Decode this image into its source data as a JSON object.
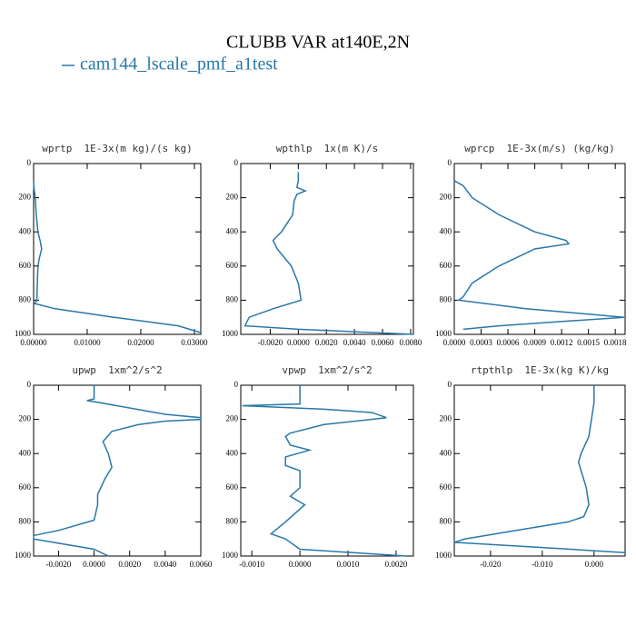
{
  "title": "CLUBB VAR at140E,2N",
  "chart_data": [
    {
      "type": "line",
      "title": "wprtp  1E-3x(m kg)/(s kg)",
      "y": [
        100,
        150,
        200,
        300,
        400,
        450,
        500,
        550,
        600,
        700,
        800,
        820,
        850,
        900,
        950,
        990
      ],
      "series": [
        {
          "name": "cam144_lscale_pmf_a1test",
          "color": "#2878a8",
          "values": [
            0,
            0.0001,
            0.0003,
            0.0005,
            0.0008,
            0.0012,
            0.0015,
            0.0011,
            0.0008,
            0.0007,
            0.0006,
            0.0002,
            0.004,
            0.015,
            0.027,
            0.0312
          ]
        }
      ],
      "xlim": [
        0,
        0.0312
      ],
      "xticks": [
        {
          "value": 0,
          "label": "0.00000"
        },
        {
          "value": 0.01,
          "label": "0.01000"
        },
        {
          "value": 0.02,
          "label": "0.02000"
        },
        {
          "value": 0.03,
          "label": "0.03000"
        }
      ],
      "ylim": [
        1000,
        0
      ],
      "yticks": [
        0,
        200,
        400,
        600,
        800,
        1000
      ]
    },
    {
      "type": "line",
      "title": "wpthlp  1x(m K)/s",
      "y": [
        50,
        100,
        140,
        160,
        180,
        220,
        300,
        400,
        450,
        500,
        600,
        700,
        800,
        850,
        900,
        950,
        970,
        1000
      ],
      "series": [
        {
          "name": "cam144_lscale_pmf_a1test",
          "color": "#2878a8",
          "values": [
            0,
            0,
            -0.0001,
            0.0005,
            -0.0001,
            -0.0003,
            -0.0004,
            -0.0012,
            -0.0018,
            -0.0015,
            -0.0005,
            0,
            0.0002,
            -0.0018,
            -0.0035,
            -0.0038,
            0,
            0.0082
          ]
        }
      ],
      "xlim": [
        -0.0041,
        0.0082
      ],
      "xticks": [
        {
          "value": -0.002,
          "label": "-0.0020"
        },
        {
          "value": 0,
          "label": "0.0000"
        },
        {
          "value": 0.002,
          "label": "0.0020"
        },
        {
          "value": 0.004,
          "label": "0.0040"
        },
        {
          "value": 0.006,
          "label": "0.0060"
        },
        {
          "value": 0.008,
          "label": "0.0080"
        }
      ],
      "ylim": [
        1000,
        0
      ],
      "yticks": [
        0,
        200,
        400,
        600,
        800,
        1000
      ]
    },
    {
      "type": "line",
      "title": "wprcp  1E-3x(m/s) (kg/kg)",
      "y": [
        100,
        130,
        200,
        300,
        400,
        450,
        470,
        500,
        600,
        700,
        780,
        800,
        850,
        900,
        950,
        970
      ],
      "series": [
        {
          "name": "cam144_lscale_pmf_a1test",
          "color": "#2878a8",
          "values": [
            0,
            0.0001,
            0.0002,
            0.0005,
            0.0009,
            0.00125,
            0.00128,
            0.0009,
            0.0005,
            0.0002,
            0.0001,
            5e-05,
            0.0008,
            0.0019,
            0.0005,
            0.0001
          ]
        }
      ],
      "xlim": [
        0,
        0.00191
      ],
      "xticks": [
        {
          "value": 0,
          "label": "0.0000"
        },
        {
          "value": 0.0003,
          "label": "0.0003"
        },
        {
          "value": 0.0006,
          "label": "0.0006"
        },
        {
          "value": 0.0009,
          "label": "0.0009"
        },
        {
          "value": 0.0012,
          "label": "0.0012"
        },
        {
          "value": 0.0015,
          "label": "0.0015"
        },
        {
          "value": 0.0018,
          "label": "0.0018"
        }
      ],
      "ylim": [
        1000,
        0
      ],
      "yticks": [
        0,
        200,
        400,
        600,
        800,
        1000
      ]
    },
    {
      "type": "line",
      "title": "upwp  1xm^2/s^2",
      "y": [
        0,
        80,
        90,
        100,
        170,
        190,
        200,
        210,
        230,
        270,
        330,
        400,
        480,
        550,
        640,
        700,
        790,
        850,
        880,
        900,
        960,
        1000
      ],
      "series": [
        {
          "name": "cam144_lscale_pmf_a1test",
          "color": "#2878a8",
          "values": [
            0,
            0,
            -0.0004,
            0.0002,
            0.004,
            0.006,
            0.006,
            0.004,
            0.0025,
            0.001,
            0.0005,
            0.0008,
            0.001,
            0.0006,
            0.0002,
            0.0002,
            0,
            -0.002,
            -0.0034,
            -0.0034,
            0,
            0.0008
          ]
        }
      ],
      "xlim": [
        -0.0034,
        0.006
      ],
      "xticks": [
        {
          "value": -0.002,
          "label": "-0.0020"
        },
        {
          "value": 0,
          "label": "0.0000"
        },
        {
          "value": 0.002,
          "label": "0.0020"
        },
        {
          "value": 0.004,
          "label": "0.0040"
        },
        {
          "value": 0.006,
          "label": "0.0060"
        }
      ],
      "ylim": [
        1000,
        0
      ],
      "yticks": [
        0,
        200,
        400,
        600,
        800,
        1000
      ]
    },
    {
      "type": "line",
      "title": "vpwp  1xm^2/s^2",
      "y": [
        0,
        110,
        120,
        140,
        160,
        190,
        230,
        280,
        300,
        350,
        380,
        420,
        470,
        500,
        600,
        650,
        700,
        800,
        870,
        900,
        960,
        1000
      ],
      "series": [
        {
          "name": "cam144_lscale_pmf_a1test",
          "color": "#2878a8",
          "values": [
            0,
            0,
            -0.0012,
            0.0005,
            0.0015,
            0.0018,
            0.0005,
            -0.0002,
            -0.0003,
            -0.0002,
            0.0002,
            -0.0003,
            -0.0003,
            0,
            0,
            -0.0002,
            0.0001,
            -0.0003,
            -0.0006,
            -0.0003,
            0,
            0.0022
          ]
        }
      ],
      "xlim": [
        -0.00123,
        0.00236
      ],
      "xticks": [
        {
          "value": -0.001,
          "label": "-0.0010"
        },
        {
          "value": 0,
          "label": "0.0000"
        },
        {
          "value": 0.001,
          "label": "0.0010"
        },
        {
          "value": 0.002,
          "label": "0.0020"
        }
      ],
      "ylim": [
        1000,
        0
      ],
      "yticks": [
        0,
        200,
        400,
        600,
        800,
        1000
      ]
    },
    {
      "type": "line",
      "title": "rtpthlp  1E-3x(kg K)/kg",
      "y": [
        0,
        100,
        300,
        400,
        450,
        500,
        600,
        700,
        770,
        800,
        850,
        900,
        920,
        950,
        980
      ],
      "series": [
        {
          "name": "cam144_lscale_pmf_a1test",
          "color": "#2878a8",
          "values": [
            0,
            0,
            -0.001,
            -0.0025,
            -0.003,
            -0.0025,
            -0.0015,
            -0.001,
            -0.002,
            -0.005,
            -0.015,
            -0.025,
            -0.027,
            -0.01,
            0.006
          ]
        }
      ],
      "xlim": [
        -0.027,
        0.006
      ],
      "xticks": [
        {
          "value": -0.02,
          "label": "-0.020"
        },
        {
          "value": -0.01,
          "label": "-0.010"
        },
        {
          "value": 0,
          "label": "0.000"
        }
      ],
      "ylim": [
        1000,
        0
      ],
      "yticks": [
        0,
        200,
        400,
        600,
        800,
        1000
      ]
    }
  ]
}
